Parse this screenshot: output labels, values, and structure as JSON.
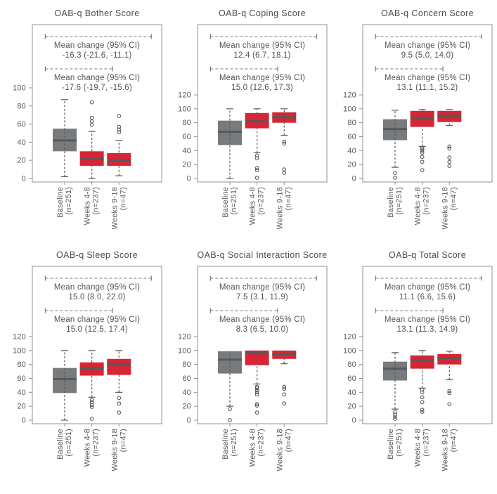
{
  "figure": {
    "colors": {
      "red": "#d92433",
      "gray": "#787a7c",
      "median": "#555a5e",
      "frame": "#8f9194",
      "title_text": "#4b4c4e",
      "annotation_text": "#515356",
      "tick_text": "#58595b",
      "whisker": "#595a5c",
      "bracket": "#77787a",
      "background": "#ffffff"
    }
  },
  "chart_data": [
    {
      "type": "box",
      "title": "OAB-q Bother Score",
      "ylim": [
        0,
        100
      ],
      "yticks": [
        0,
        20,
        40,
        60,
        80,
        100
      ],
      "categories": [
        {
          "line1": "Baseline",
          "line2": "(n=251)"
        },
        {
          "line1": "Weeks 4-8",
          "line2": "(n=237)"
        },
        {
          "line1": "Weeks 9-18",
          "line2": "(n=47)"
        }
      ],
      "annotations": [
        {
          "label": "Mean change (95% CI)",
          "value": "-16.3 (-21.6, -11.1)",
          "span": [
            0,
            2
          ]
        },
        {
          "label": "Mean change (95% CI)",
          "value": "-17.6 (-19.7, -15.6)",
          "span": [
            0,
            1
          ]
        }
      ],
      "series": [
        {
          "name": "Baseline (n=251)",
          "color": "gray",
          "low": 2,
          "q1": 30,
          "median": 42,
          "q3": 55,
          "high": 87,
          "outliers": []
        },
        {
          "name": "Weeks 4-8 (n=237)",
          "color": "red",
          "low": 0,
          "q1": 14,
          "median": 22,
          "q3": 30,
          "high": 52,
          "outliers": [
            84,
            67,
            63,
            59
          ]
        },
        {
          "name": "Weeks 9-18 (n=47)",
          "color": "red",
          "low": 3,
          "q1": 14,
          "median": 20,
          "q3": 28,
          "high": 42,
          "outliers": [
            69,
            57,
            54,
            51
          ]
        }
      ]
    },
    {
      "type": "box",
      "title": "OAB-q Coping Score",
      "ylim": [
        0,
        120
      ],
      "yticks": [
        0,
        20,
        40,
        60,
        80,
        100,
        120
      ],
      "categories": [
        {
          "line1": "Baseline",
          "line2": "(n=251)"
        },
        {
          "line1": "Weeks 4-8",
          "line2": "(n=237)"
        },
        {
          "line1": "Weeks 9-18",
          "line2": "(n=47)"
        }
      ],
      "annotations": [
        {
          "label": "Mean change (95% CI)",
          "value": "12.4 (6.7, 18.1)",
          "span": [
            0,
            2
          ]
        },
        {
          "label": "Mean change (95% CI)",
          "value": "15.0 (12.6, 17.3)",
          "span": [
            0,
            1
          ]
        }
      ],
      "series": [
        {
          "name": "Baseline (n=251)",
          "color": "gray",
          "low": 0,
          "q1": 48,
          "median": 67,
          "q3": 83,
          "high": 100,
          "outliers": []
        },
        {
          "name": "Weeks 4-8 (n=237)",
          "color": "red",
          "low": 37,
          "q1": 72,
          "median": 82,
          "q3": 94,
          "high": 100,
          "outliers": [
            33,
            29,
            15,
            12,
            1
          ]
        },
        {
          "name": "Weeks 9-18 (n=47)",
          "color": "red",
          "low": 62,
          "q1": 80,
          "median": 88,
          "q3": 95,
          "high": 100,
          "outliers": [
            53,
            50,
            13,
            8
          ]
        }
      ]
    },
    {
      "type": "box",
      "title": "OAB-q Concern Score",
      "ylim": [
        0,
        120
      ],
      "yticks": [
        0,
        20,
        40,
        60,
        80,
        100,
        120
      ],
      "categories": [
        {
          "line1": "Baseline",
          "line2": "(n=251)"
        },
        {
          "line1": "Weeks 4-8",
          "line2": "(n=237)"
        },
        {
          "line1": "Weeks 9-18",
          "line2": "(n=47)"
        }
      ],
      "annotations": [
        {
          "label": "Mean change (95% CI)",
          "value": "9.5 (5.0, 14.0)",
          "span": [
            0,
            2
          ]
        },
        {
          "label": "Mean change (95% CI)",
          "value": "13.1 (11.1, 15.2)",
          "span": [
            0,
            1
          ]
        }
      ],
      "series": [
        {
          "name": "Baseline (n=251)",
          "color": "gray",
          "low": 16,
          "q1": 55,
          "median": 71,
          "q3": 85,
          "high": 98,
          "outliers": [
            8,
            1
          ]
        },
        {
          "name": "Weeks 4-8 (n=237)",
          "color": "red",
          "low": 46,
          "q1": 74,
          "median": 87,
          "q3": 97,
          "high": 99,
          "outliers": [
            44,
            42,
            40,
            37,
            31,
            24,
            12
          ]
        },
        {
          "name": "Weeks 9-18 (n=47)",
          "color": "red",
          "low": 76,
          "q1": 81,
          "median": 90,
          "q3": 97,
          "high": 99,
          "outliers": [
            46,
            43,
            30,
            24,
            18
          ]
        }
      ]
    },
    {
      "type": "box",
      "title": "OAB-q Sleep Score",
      "ylim": [
        0,
        120
      ],
      "yticks": [
        0,
        20,
        40,
        60,
        80,
        100,
        120
      ],
      "categories": [
        {
          "line1": "Baseline",
          "line2": "(n=251)"
        },
        {
          "line1": "Weeks 4-8",
          "line2": "(n=237)"
        },
        {
          "line1": "Weeks 9-18",
          "line2": "(n=47)"
        }
      ],
      "annotations": [
        {
          "label": "Mean change (95% CI)",
          "value": "15.0 (8.0, 22.0)",
          "span": [
            0,
            2
          ]
        },
        {
          "label": "Mean change (95% CI)",
          "value": "15.0 (12.5, 17.4)",
          "span": [
            0,
            1
          ]
        }
      ],
      "series": [
        {
          "name": "Baseline (n=251)",
          "color": "gray",
          "low": 0,
          "q1": 39,
          "median": 59,
          "q3": 75,
          "high": 100,
          "outliers": []
        },
        {
          "name": "Weeks 4-8 (n=237)",
          "color": "red",
          "low": 33,
          "q1": 64,
          "median": 75,
          "q3": 83,
          "high": 100,
          "outliers": [
            29,
            26,
            22,
            19,
            2
          ]
        },
        {
          "name": "Weeks 9-18 (n=47)",
          "color": "red",
          "low": 40,
          "q1": 65,
          "median": 80,
          "q3": 88,
          "high": 100,
          "outliers": [
            32,
            24,
            11
          ]
        }
      ]
    },
    {
      "type": "box",
      "title": "OAB-q Social Interaction Score",
      "ylim": [
        0,
        120
      ],
      "yticks": [
        0,
        20,
        40,
        60,
        80,
        100,
        120
      ],
      "categories": [
        {
          "line1": "Baseline",
          "line2": "(n=251)"
        },
        {
          "line1": "Weeks 4-8",
          "line2": "(n=237)"
        },
        {
          "line1": "Weeks 9-18",
          "line2": "(n=47)"
        }
      ],
      "annotations": [
        {
          "label": "Mean change (95% CI)",
          "value": "7.5 (3.1, 11.9)",
          "span": [
            0,
            2
          ]
        },
        {
          "label": "Mean change (95% CI)",
          "value": "8.3 (6.5, 10.0)",
          "span": [
            0,
            1
          ]
        }
      ],
      "series": [
        {
          "name": "Baseline (n=251)",
          "color": "gray",
          "low": 20,
          "q1": 67,
          "median": 87,
          "q3": 99,
          "high": 99,
          "outliers": [
            16,
            0
          ]
        },
        {
          "name": "Weeks 4-8 (n=237)",
          "color": "red",
          "low": 52,
          "q1": 79,
          "median": 96,
          "q3": 100,
          "high": 100,
          "outliers": [
            48,
            46,
            43,
            40,
            37,
            23,
            21,
            11
          ]
        },
        {
          "name": "Weeks 9-18 (n=47)",
          "color": "red",
          "low": 81,
          "q1": 88,
          "median": 95,
          "q3": 100,
          "high": 100,
          "outliers": [
            48,
            45,
            37,
            24
          ]
        }
      ]
    },
    {
      "type": "box",
      "title": "OAB-q Total Score",
      "ylim": [
        0,
        120
      ],
      "yticks": [
        0,
        20,
        40,
        60,
        80,
        100,
        120
      ],
      "categories": [
        {
          "line1": "Baseline",
          "line2": "(n=251)"
        },
        {
          "line1": "Weeks 4-8",
          "line2": "(n=237)"
        },
        {
          "line1": "Weeks 9-18",
          "line2": "(n=47)"
        }
      ],
      "annotations": [
        {
          "label": "Mean change (95% CI)",
          "value": "11.1 (6.6, 15.6)",
          "span": [
            0,
            2
          ]
        },
        {
          "label": "Mean change (95% CI)",
          "value": "13.1 (11.3, 14.9)",
          "span": [
            0,
            1
          ]
        }
      ],
      "series": [
        {
          "name": "Baseline (n=251)",
          "color": "gray",
          "low": 16,
          "q1": 57,
          "median": 74,
          "q3": 84,
          "high": 97,
          "outliers": [
            12,
            8,
            5,
            2
          ]
        },
        {
          "name": "Weeks 4-8 (n=237)",
          "color": "red",
          "low": 46,
          "q1": 74,
          "median": 86,
          "q3": 93,
          "high": 100,
          "outliers": [
            44,
            40,
            33,
            26,
            15,
            12
          ]
        },
        {
          "name": "Weeks 9-18 (n=47)",
          "color": "red",
          "low": 58,
          "q1": 80,
          "median": 89,
          "q3": 95,
          "high": 99,
          "outliers": [
            42,
            39,
            23
          ]
        }
      ]
    }
  ]
}
